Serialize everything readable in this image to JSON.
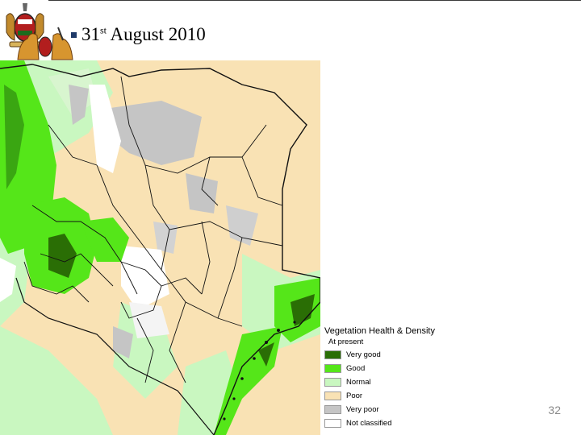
{
  "slide": {
    "date_day": "31",
    "date_suffix": "st",
    "date_rest": "August 2010",
    "page_number": "32"
  },
  "legend": {
    "title": "Vegetation Health & Density",
    "subtitle": "At present",
    "items": [
      {
        "label": "Very good",
        "color": "#2a6e05"
      },
      {
        "label": "Good",
        "color": "#55e619"
      },
      {
        "label": "Normal",
        "color": "#c9f7c0"
      },
      {
        "label": "Poor",
        "color": "#f9e2b4"
      },
      {
        "label": "Very poor",
        "color": "#c5c5c5"
      },
      {
        "label": "Not classified",
        "color": "#ffffff"
      }
    ]
  },
  "colors": {
    "bullet": "#1f3a68",
    "boundary": "#111111",
    "page_number": "#8a8a8a"
  }
}
